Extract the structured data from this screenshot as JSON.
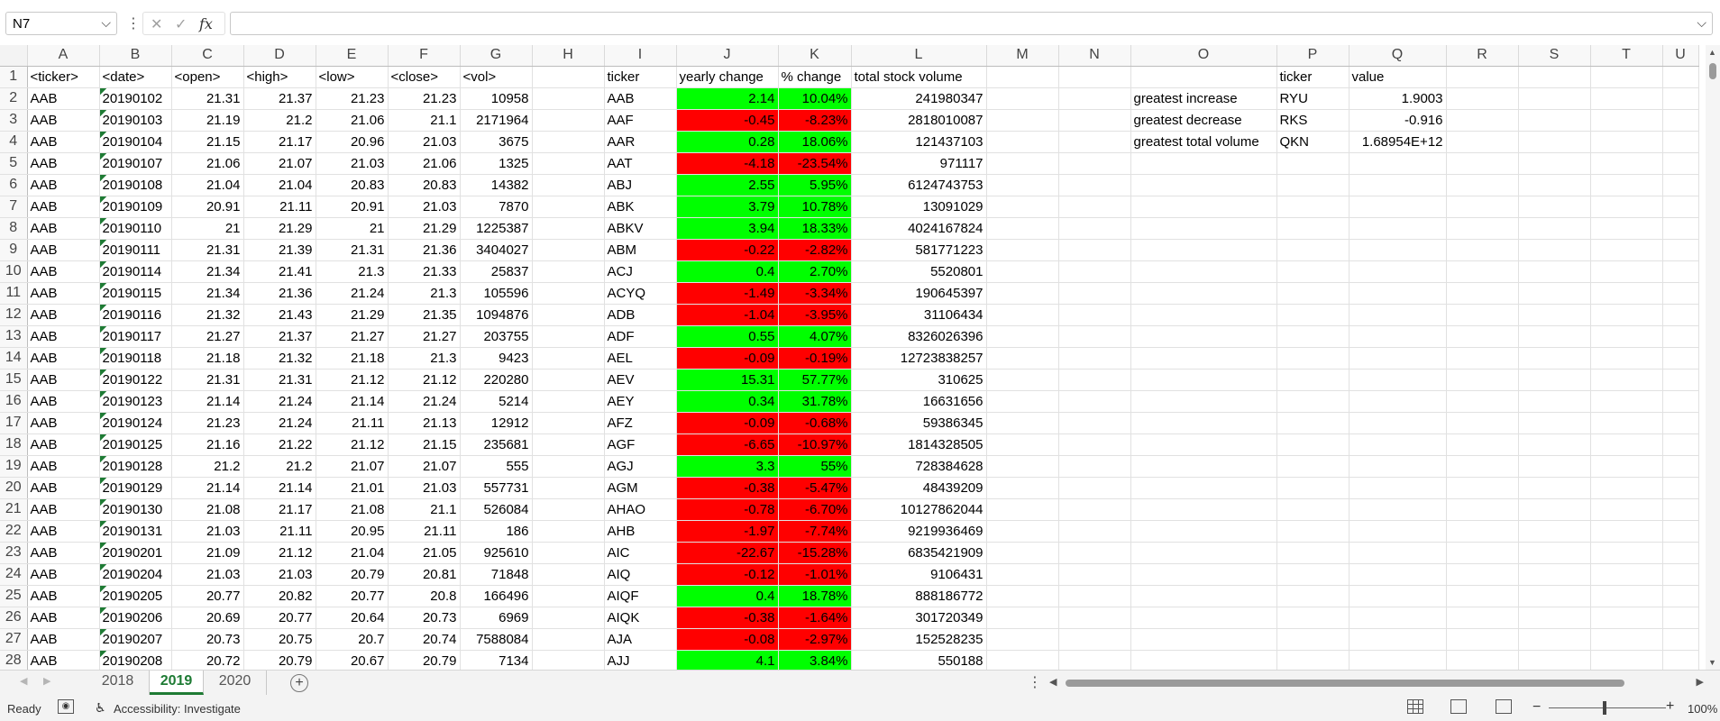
{
  "formula_bar": {
    "name_box": "N7",
    "formula": "",
    "cancel_icon": "✕",
    "enter_icon": "✓",
    "fx_label": "fx"
  },
  "columns": [
    "A",
    "B",
    "C",
    "D",
    "E",
    "F",
    "G",
    "H",
    "I",
    "J",
    "K",
    "L",
    "M",
    "N",
    "O",
    "P",
    "Q",
    "R",
    "S",
    "T",
    "U"
  ],
  "row_numbers": [
    1,
    2,
    3,
    4,
    5,
    6,
    7,
    8,
    9,
    10,
    11,
    12,
    13,
    14,
    15,
    16,
    17,
    18,
    19,
    20,
    21,
    22,
    23,
    24,
    25,
    26,
    27,
    28
  ],
  "headers": {
    "A": "<ticker>",
    "B": "<date>",
    "C": "<open>",
    "D": "<high>",
    "E": "<low>",
    "F": "<close>",
    "G": "<vol>",
    "I": "ticker",
    "J": "yearly change",
    "K": "% change",
    "L": "total stock volume",
    "P": "ticker",
    "Q": "value"
  },
  "raw_rows": [
    [
      "AAB",
      "20190102",
      "21.31",
      "21.37",
      "21.23",
      "21.23",
      "10958"
    ],
    [
      "AAB",
      "20190103",
      "21.19",
      "21.2",
      "21.06",
      "21.1",
      "2171964"
    ],
    [
      "AAB",
      "20190104",
      "21.15",
      "21.17",
      "20.96",
      "21.03",
      "3675"
    ],
    [
      "AAB",
      "20190107",
      "21.06",
      "21.07",
      "21.03",
      "21.06",
      "1325"
    ],
    [
      "AAB",
      "20190108",
      "21.04",
      "21.04",
      "20.83",
      "20.83",
      "14382"
    ],
    [
      "AAB",
      "20190109",
      "20.91",
      "21.11",
      "20.91",
      "21.03",
      "7870"
    ],
    [
      "AAB",
      "20190110",
      "21",
      "21.29",
      "21",
      "21.29",
      "1225387"
    ],
    [
      "AAB",
      "20190111",
      "21.31",
      "21.39",
      "21.31",
      "21.36",
      "3404027"
    ],
    [
      "AAB",
      "20190114",
      "21.34",
      "21.41",
      "21.3",
      "21.33",
      "25837"
    ],
    [
      "AAB",
      "20190115",
      "21.34",
      "21.36",
      "21.24",
      "21.3",
      "105596"
    ],
    [
      "AAB",
      "20190116",
      "21.32",
      "21.43",
      "21.29",
      "21.35",
      "1094876"
    ],
    [
      "AAB",
      "20190117",
      "21.27",
      "21.37",
      "21.27",
      "21.27",
      "203755"
    ],
    [
      "AAB",
      "20190118",
      "21.18",
      "21.32",
      "21.18",
      "21.3",
      "9423"
    ],
    [
      "AAB",
      "20190122",
      "21.31",
      "21.31",
      "21.12",
      "21.12",
      "220280"
    ],
    [
      "AAB",
      "20190123",
      "21.14",
      "21.24",
      "21.14",
      "21.24",
      "5214"
    ],
    [
      "AAB",
      "20190124",
      "21.23",
      "21.24",
      "21.11",
      "21.13",
      "12912"
    ],
    [
      "AAB",
      "20190125",
      "21.16",
      "21.22",
      "21.12",
      "21.15",
      "235681"
    ],
    [
      "AAB",
      "20190128",
      "21.2",
      "21.2",
      "21.07",
      "21.07",
      "555"
    ],
    [
      "AAB",
      "20190129",
      "21.14",
      "21.14",
      "21.01",
      "21.03",
      "557731"
    ],
    [
      "AAB",
      "20190130",
      "21.08",
      "21.17",
      "21.08",
      "21.1",
      "526084"
    ],
    [
      "AAB",
      "20190131",
      "21.03",
      "21.11",
      "20.95",
      "21.11",
      "186"
    ],
    [
      "AAB",
      "20190201",
      "21.09",
      "21.12",
      "21.04",
      "21.05",
      "925610"
    ],
    [
      "AAB",
      "20190204",
      "21.03",
      "21.03",
      "20.79",
      "20.81",
      "71848"
    ],
    [
      "AAB",
      "20190205",
      "20.77",
      "20.82",
      "20.77",
      "20.8",
      "166496"
    ],
    [
      "AAB",
      "20190206",
      "20.69",
      "20.77",
      "20.64",
      "20.73",
      "6969"
    ],
    [
      "AAB",
      "20190207",
      "20.73",
      "20.75",
      "20.7",
      "20.74",
      "7588084"
    ],
    [
      "AAB",
      "20190208",
      "20.72",
      "20.79",
      "20.67",
      "20.79",
      "7134"
    ]
  ],
  "summary_rows": [
    [
      "AAB",
      "2.14",
      "10.04%",
      "241980347",
      "pos"
    ],
    [
      "AAF",
      "-0.45",
      "-8.23%",
      "2818010087",
      "neg"
    ],
    [
      "AAR",
      "0.28",
      "18.06%",
      "121437103",
      "pos"
    ],
    [
      "AAT",
      "-4.18",
      "-23.54%",
      "971117",
      "neg"
    ],
    [
      "ABJ",
      "2.55",
      "5.95%",
      "6124743753",
      "pos"
    ],
    [
      "ABK",
      "3.79",
      "10.78%",
      "13091029",
      "pos"
    ],
    [
      "ABKV",
      "3.94",
      "18.33%",
      "4024167824",
      "pos"
    ],
    [
      "ABM",
      "-0.22",
      "-2.82%",
      "581771223",
      "neg"
    ],
    [
      "ACJ",
      "0.4",
      "2.70%",
      "5520801",
      "pos"
    ],
    [
      "ACYQ",
      "-1.49",
      "-3.34%",
      "190645397",
      "neg"
    ],
    [
      "ADB",
      "-1.04",
      "-3.95%",
      "31106434",
      "neg"
    ],
    [
      "ADF",
      "0.55",
      "4.07%",
      "8326026396",
      "pos"
    ],
    [
      "AEL",
      "-0.09",
      "-0.19%",
      "12723838257",
      "neg"
    ],
    [
      "AEV",
      "15.31",
      "57.77%",
      "310625",
      "pos"
    ],
    [
      "AEY",
      "0.34",
      "31.78%",
      "16631656",
      "pos"
    ],
    [
      "AFZ",
      "-0.09",
      "-0.68%",
      "59386345",
      "neg"
    ],
    [
      "AGF",
      "-6.65",
      "-10.97%",
      "1814328505",
      "neg"
    ],
    [
      "AGJ",
      "3.3",
      "55%",
      "728384628",
      "pos"
    ],
    [
      "AGM",
      "-0.38",
      "-5.47%",
      "48439209",
      "neg"
    ],
    [
      "AHAO",
      "-0.78",
      "-6.70%",
      "10127862044",
      "neg"
    ],
    [
      "AHB",
      "-1.97",
      "-7.74%",
      "9219936469",
      "neg"
    ],
    [
      "AIC",
      "-22.67",
      "-15.28%",
      "6835421909",
      "neg"
    ],
    [
      "AIQ",
      "-0.12",
      "-1.01%",
      "9106431",
      "neg"
    ],
    [
      "AIQF",
      "0.4",
      "18.78%",
      "888186772",
      "pos"
    ],
    [
      "AIQK",
      "-0.38",
      "-1.64%",
      "301720349",
      "neg"
    ],
    [
      "AJA",
      "-0.08",
      "-2.97%",
      "152528235",
      "neg"
    ],
    [
      "AJJ",
      "4.1",
      "3.84%",
      "550188",
      "pos"
    ]
  ],
  "greatest": [
    [
      "greatest increase",
      "RYU",
      "1.9003"
    ],
    [
      "greatest decrease",
      "RKS",
      "-0.916"
    ],
    [
      "greatest total volume",
      "QKN",
      "1.68954E+12"
    ]
  ],
  "colors": {
    "positive": "#00ff00",
    "negative": "#ff0000",
    "accent": "#1e7b34"
  },
  "sheet_tabs": [
    "2018",
    "2019",
    "2020"
  ],
  "active_sheet": "2019",
  "status": {
    "ready": "Ready",
    "accessibility": "Accessibility: Investigate",
    "zoom": "100%"
  }
}
